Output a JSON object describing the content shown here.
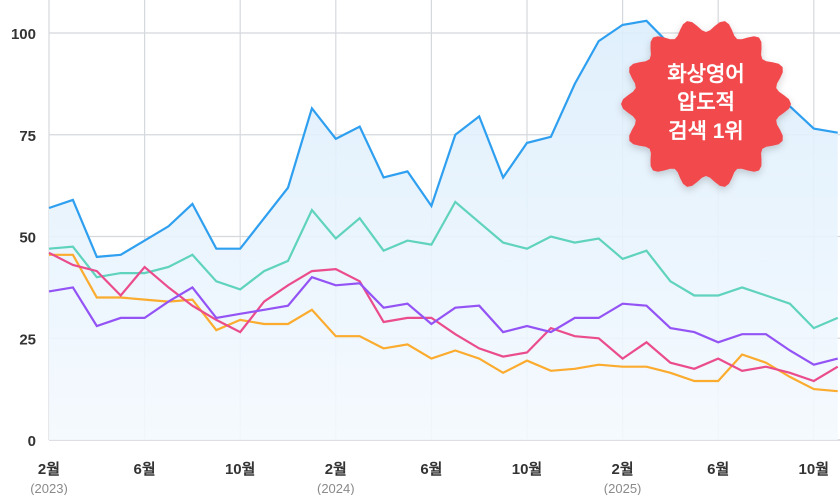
{
  "chart_data": {
    "type": "line",
    "title": "",
    "xlabel": "",
    "ylabel": "",
    "ylim": [
      0,
      105
    ],
    "grid": true,
    "legend": null,
    "y_ticks": [
      0,
      25,
      50,
      75,
      100
    ],
    "x_tick_labels": [
      {
        "index": 0,
        "label": "2월",
        "year": "(2023)"
      },
      {
        "index": 4,
        "label": "6월",
        "year": ""
      },
      {
        "index": 8,
        "label": "10월",
        "year": ""
      },
      {
        "index": 12,
        "label": "2월",
        "year": "(2024)"
      },
      {
        "index": 16,
        "label": "6월",
        "year": ""
      },
      {
        "index": 20,
        "label": "10월",
        "year": ""
      },
      {
        "index": 24,
        "label": "2월",
        "year": "(2025)"
      },
      {
        "index": 28,
        "label": "6월",
        "year": ""
      },
      {
        "index": 32,
        "label": "10월",
        "year": ""
      }
    ],
    "x": [
      "2023-02",
      "2023-03",
      "2023-04",
      "2023-05",
      "2023-06",
      "2023-07",
      "2023-08",
      "2023-09",
      "2023-10",
      "2023-11",
      "2023-12",
      "2024-01",
      "2024-02",
      "2024-03",
      "2024-04",
      "2024-05",
      "2024-06",
      "2024-07",
      "2024-08",
      "2024-09",
      "2024-10",
      "2024-11",
      "2024-12",
      "2025-01",
      "2025-02",
      "2025-03",
      "2025-04",
      "2025-05",
      "2025-06",
      "2025-07",
      "2025-08",
      "2025-09",
      "2025-10",
      "2025-11"
    ],
    "series": [
      {
        "name": "화상영어",
        "color": "#2f9ff0",
        "fill": true,
        "values": [
          57,
          59,
          45,
          45.5,
          49,
          52.5,
          58,
          47,
          47,
          54.5,
          62,
          81.5,
          74,
          77,
          64.5,
          66,
          57.5,
          75,
          79.5,
          64.5,
          73,
          74.5,
          87.5,
          98,
          102,
          103,
          97,
          92,
          88,
          85,
          84,
          82,
          76.5,
          75.5
        ]
      },
      {
        "name": "series-teal",
        "color": "#5fd3bd",
        "fill": false,
        "values": [
          47,
          47.5,
          40,
          41,
          41,
          42.5,
          45.5,
          39,
          37,
          41.5,
          44,
          56.5,
          49.5,
          54.5,
          46.5,
          49,
          48,
          58.5,
          53.5,
          48.5,
          47,
          50,
          48.5,
          49.5,
          44.5,
          46.5,
          39,
          35.5,
          35.5,
          37.5,
          35.5,
          33.5,
          27.5,
          30
        ]
      },
      {
        "name": "series-orange",
        "color": "#fbab2d",
        "fill": false,
        "values": [
          45.5,
          45.5,
          35,
          35,
          34.5,
          34,
          34.5,
          27,
          29.5,
          28.5,
          28.5,
          32,
          25.5,
          25.5,
          22.5,
          23.5,
          20,
          22,
          20,
          16.5,
          19.5,
          17,
          17.5,
          18.5,
          18,
          18,
          16.5,
          14.5,
          14.5,
          21,
          19,
          15.5,
          12.5,
          12
        ]
      },
      {
        "name": "series-pink",
        "color": "#ea4c8c",
        "fill": false,
        "values": [
          46,
          43,
          41.5,
          35.5,
          42.5,
          37.5,
          33,
          29.5,
          26.5,
          34,
          38,
          41.5,
          42,
          39,
          29,
          30,
          30,
          26,
          22.5,
          20.5,
          21.5,
          27.5,
          25.5,
          25,
          20,
          24,
          19,
          17.5,
          20,
          17,
          18,
          16.5,
          14.5,
          18
        ]
      },
      {
        "name": "series-purple",
        "color": "#9353f5",
        "fill": false,
        "values": [
          36.5,
          37.5,
          28,
          30,
          30,
          34,
          37.5,
          30,
          31,
          32,
          33,
          40,
          38,
          38.5,
          32.5,
          33.5,
          28.5,
          32.5,
          33,
          26.5,
          28,
          26.5,
          30,
          30,
          33.5,
          33,
          27.5,
          26.5,
          24,
          26,
          26,
          22,
          18.5,
          20
        ]
      }
    ],
    "annotations": [
      {
        "type": "badge",
        "shape": "starburst",
        "color": "#f2484e",
        "lines": [
          "화상영어",
          "압도적",
          "검색 1위"
        ]
      }
    ]
  },
  "badge": {
    "line1": "화상영어",
    "line2": "압도적",
    "line3": "검색 1위"
  },
  "axis": {
    "y_labels": [
      "0",
      "25",
      "50",
      "75",
      "100"
    ],
    "x_labels": [
      "2월",
      "6월",
      "10월",
      "2월",
      "6월",
      "10월",
      "2월",
      "6월",
      "10월"
    ],
    "x_years": [
      "(2023)",
      "(2024)",
      "(2025)"
    ]
  },
  "colors": {
    "grid": "#d5d8dd",
    "axis_text": "#333333",
    "year_text": "#8a8a8a",
    "area_top": "#dceefc",
    "area_bottom": "#f4f9fe"
  }
}
